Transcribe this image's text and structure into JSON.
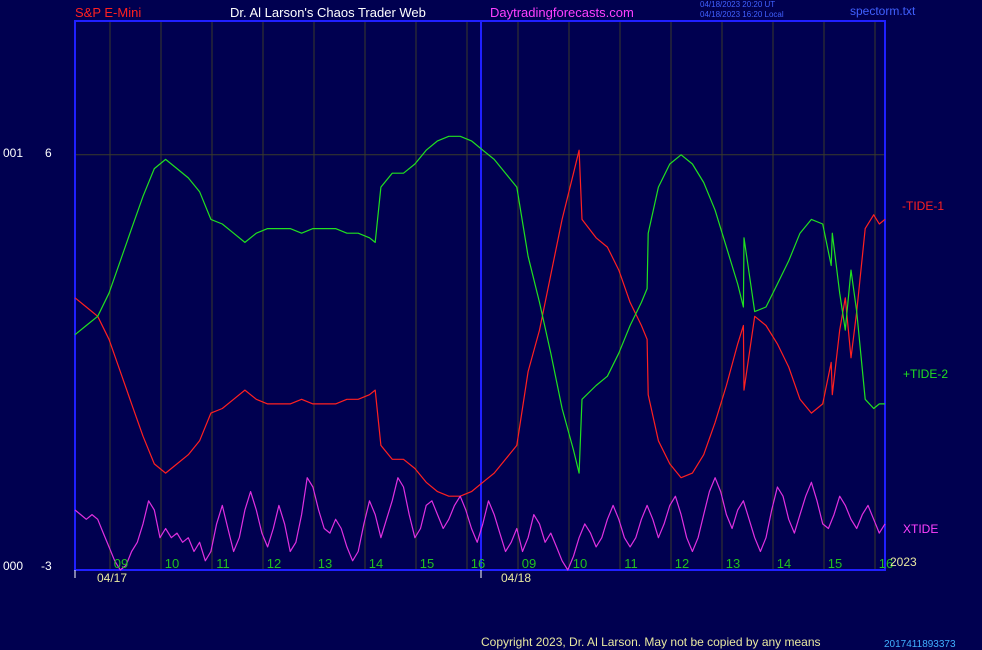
{
  "header": {
    "symbol": "S&P E-Mini",
    "author": "Dr. Al Larson's Chaos Trader Web",
    "site": "Daytradingforecasts.com",
    "stamp_line1": "04/18/2023 20:20 UT",
    "stamp_line2": "04/18/2023 16:20 Local",
    "file": "spectorm.txt"
  },
  "footer": {
    "copyright": "Copyright 2023, Dr. Al Larson. May not be copied by any means",
    "counter": "2017411893373"
  },
  "colors": {
    "background": "#000050",
    "frame": "#2020ff",
    "minus_tide": "#ff2020",
    "plus_tide": "#20e020",
    "xtide": "#e030e0",
    "grid": "#3a3a2a",
    "tick_label": "#20c020",
    "date_label": "#e8e8a0"
  },
  "chart_data": {
    "type": "line",
    "title": "",
    "y_axis": {
      "ticks": [
        6,
        -3
      ],
      "left_codes": [
        "001",
        "000"
      ],
      "ylim": [
        -3,
        8.9
      ]
    },
    "x_axis": {
      "hour_labels": [
        "09",
        "10",
        "11",
        "12",
        "13",
        "14",
        "15",
        "16",
        "09",
        "10",
        "11",
        "12",
        "13",
        "14",
        "15",
        "16"
      ],
      "date_labels": [
        "04/17",
        "04/18"
      ],
      "year_label": "2023"
    },
    "series": [
      {
        "name": "-TIDE-1",
        "color": "#ff2020",
        "points": [
          [
            0,
            2.9
          ],
          [
            2,
            2.7
          ],
          [
            4,
            2.5
          ],
          [
            6,
            2.0
          ],
          [
            8,
            1.3
          ],
          [
            10,
            0.6
          ],
          [
            12,
            -0.1
          ],
          [
            14,
            -0.7
          ],
          [
            16,
            -0.9
          ],
          [
            18,
            -0.7
          ],
          [
            20,
            -0.5
          ],
          [
            22,
            -0.2
          ],
          [
            24,
            0.4
          ],
          [
            26,
            0.5
          ],
          [
            28,
            0.7
          ],
          [
            30,
            0.9
          ],
          [
            32,
            0.7
          ],
          [
            34,
            0.6
          ],
          [
            36,
            0.6
          ],
          [
            38,
            0.6
          ],
          [
            40,
            0.7
          ],
          [
            42,
            0.6
          ],
          [
            44,
            0.6
          ],
          [
            46,
            0.6
          ],
          [
            48,
            0.7
          ],
          [
            50,
            0.7
          ],
          [
            52,
            0.8
          ],
          [
            53,
            0.9
          ],
          [
            54,
            -0.3
          ],
          [
            56,
            -0.6
          ],
          [
            58,
            -0.6
          ],
          [
            60,
            -0.8
          ],
          [
            62,
            -1.1
          ],
          [
            64,
            -1.3
          ],
          [
            66,
            -1.4
          ],
          [
            68,
            -1.4
          ],
          [
            70,
            -1.3
          ],
          [
            72,
            -1.1
          ],
          [
            74,
            -0.9
          ],
          [
            76,
            -0.6
          ],
          [
            78,
            -0.3
          ],
          [
            80,
            1.3
          ],
          [
            82,
            2.2
          ],
          [
            84,
            3.4
          ],
          [
            86,
            4.6
          ],
          [
            88,
            5.6
          ],
          [
            89,
            6.1
          ],
          [
            89.5,
            4.6
          ],
          [
            92,
            4.2
          ],
          [
            94,
            4.0
          ],
          [
            96,
            3.5
          ],
          [
            98,
            2.8
          ],
          [
            100,
            2.3
          ],
          [
            101,
            2.0
          ],
          [
            101.2,
            0.8
          ],
          [
            103,
            -0.2
          ],
          [
            105,
            -0.7
          ],
          [
            107,
            -1.0
          ],
          [
            109,
            -0.9
          ],
          [
            111,
            -0.5
          ],
          [
            113,
            0.2
          ],
          [
            115,
            1.0
          ],
          [
            117,
            1.9
          ],
          [
            118,
            2.3
          ],
          [
            118.1,
            0.9
          ],
          [
            120,
            2.5
          ],
          [
            122,
            2.3
          ],
          [
            124,
            1.9
          ],
          [
            126,
            1.4
          ],
          [
            128,
            0.7
          ],
          [
            130,
            0.4
          ],
          [
            132,
            0.6
          ],
          [
            133.5,
            1.5
          ],
          [
            133.7,
            0.8
          ],
          [
            135,
            2.2
          ],
          [
            136,
            2.9
          ],
          [
            137,
            1.6
          ],
          [
            138,
            2.6
          ],
          [
            139.5,
            4.4
          ],
          [
            141,
            4.7
          ],
          [
            142,
            4.5
          ],
          [
            143,
            4.6
          ]
        ]
      },
      {
        "name": "+TIDE-2",
        "color": "#20e020",
        "points": [
          [
            0,
            2.1
          ],
          [
            2,
            2.3
          ],
          [
            4,
            2.5
          ],
          [
            6,
            3.0
          ],
          [
            8,
            3.7
          ],
          [
            10,
            4.4
          ],
          [
            12,
            5.1
          ],
          [
            14,
            5.7
          ],
          [
            16,
            5.9
          ],
          [
            18,
            5.7
          ],
          [
            20,
            5.5
          ],
          [
            22,
            5.2
          ],
          [
            24,
            4.6
          ],
          [
            26,
            4.5
          ],
          [
            28,
            4.3
          ],
          [
            30,
            4.1
          ],
          [
            32,
            4.3
          ],
          [
            34,
            4.4
          ],
          [
            36,
            4.4
          ],
          [
            38,
            4.4
          ],
          [
            40,
            4.3
          ],
          [
            42,
            4.4
          ],
          [
            44,
            4.4
          ],
          [
            46,
            4.4
          ],
          [
            48,
            4.3
          ],
          [
            50,
            4.3
          ],
          [
            52,
            4.2
          ],
          [
            53,
            4.1
          ],
          [
            54,
            5.3
          ],
          [
            56,
            5.6
          ],
          [
            58,
            5.6
          ],
          [
            60,
            5.8
          ],
          [
            62,
            6.1
          ],
          [
            64,
            6.3
          ],
          [
            66,
            6.4
          ],
          [
            68,
            6.4
          ],
          [
            70,
            6.3
          ],
          [
            72,
            6.1
          ],
          [
            74,
            5.9
          ],
          [
            76,
            5.6
          ],
          [
            78,
            5.3
          ],
          [
            80,
            3.8
          ],
          [
            82,
            2.8
          ],
          [
            84,
            1.7
          ],
          [
            86,
            0.5
          ],
          [
            88,
            -0.4
          ],
          [
            89,
            -0.9
          ],
          [
            89.5,
            0.7
          ],
          [
            92,
            1.0
          ],
          [
            94,
            1.2
          ],
          [
            96,
            1.7
          ],
          [
            98,
            2.3
          ],
          [
            100,
            2.8
          ],
          [
            101,
            3.1
          ],
          [
            101.2,
            4.3
          ],
          [
            103,
            5.3
          ],
          [
            105,
            5.8
          ],
          [
            107,
            6.0
          ],
          [
            109,
            5.8
          ],
          [
            111,
            5.4
          ],
          [
            113,
            4.8
          ],
          [
            115,
            4.0
          ],
          [
            117,
            3.2
          ],
          [
            118,
            2.7
          ],
          [
            118.1,
            4.2
          ],
          [
            120,
            2.6
          ],
          [
            122,
            2.7
          ],
          [
            124,
            3.2
          ],
          [
            126,
            3.7
          ],
          [
            128,
            4.3
          ],
          [
            130,
            4.6
          ],
          [
            132,
            4.5
          ],
          [
            133.5,
            3.6
          ],
          [
            133.7,
            4.3
          ],
          [
            135,
            3.0
          ],
          [
            136,
            2.2
          ],
          [
            137,
            3.5
          ],
          [
            138,
            2.6
          ],
          [
            139.5,
            0.7
          ],
          [
            141,
            0.5
          ],
          [
            142,
            0.6
          ],
          [
            143,
            0.6
          ]
        ]
      },
      {
        "name": "XTIDE",
        "color": "#e030e0",
        "points": [
          [
            0,
            -1.7
          ],
          [
            1,
            -1.8
          ],
          [
            2,
            -1.9
          ],
          [
            3,
            -1.8
          ],
          [
            4,
            -1.9
          ],
          [
            5,
            -2.2
          ],
          [
            6,
            -2.5
          ],
          [
            7,
            -2.8
          ],
          [
            8,
            -3.0
          ],
          [
            9,
            -2.9
          ],
          [
            10,
            -2.6
          ],
          [
            11,
            -2.4
          ],
          [
            12,
            -2.0
          ],
          [
            13,
            -1.5
          ],
          [
            14,
            -1.7
          ],
          [
            15,
            -2.3
          ],
          [
            16,
            -2.1
          ],
          [
            17,
            -2.3
          ],
          [
            18,
            -2.2
          ],
          [
            19,
            -2.4
          ],
          [
            20,
            -2.3
          ],
          [
            21,
            -2.6
          ],
          [
            22,
            -2.4
          ],
          [
            23,
            -2.8
          ],
          [
            24,
            -2.6
          ],
          [
            25,
            -2.0
          ],
          [
            26,
            -1.6
          ],
          [
            27,
            -2.1
          ],
          [
            28,
            -2.6
          ],
          [
            29,
            -2.3
          ],
          [
            30,
            -1.7
          ],
          [
            31,
            -1.3
          ],
          [
            32,
            -1.7
          ],
          [
            33,
            -2.2
          ],
          [
            34,
            -2.5
          ],
          [
            35,
            -2.1
          ],
          [
            36,
            -1.6
          ],
          [
            37,
            -2.0
          ],
          [
            38,
            -2.6
          ],
          [
            39,
            -2.4
          ],
          [
            40,
            -1.8
          ],
          [
            41,
            -1.0
          ],
          [
            42,
            -1.2
          ],
          [
            43,
            -1.7
          ],
          [
            44,
            -2.1
          ],
          [
            45,
            -2.2
          ],
          [
            46,
            -1.9
          ],
          [
            47,
            -2.1
          ],
          [
            48,
            -2.5
          ],
          [
            49,
            -2.8
          ],
          [
            50,
            -2.6
          ],
          [
            51,
            -2.0
          ],
          [
            52,
            -1.5
          ],
          [
            53,
            -1.8
          ],
          [
            54,
            -2.3
          ],
          [
            55,
            -1.9
          ],
          [
            56,
            -1.5
          ],
          [
            57,
            -1.0
          ],
          [
            58,
            -1.2
          ],
          [
            59,
            -1.8
          ],
          [
            60,
            -2.3
          ],
          [
            61,
            -2.1
          ],
          [
            62,
            -1.6
          ],
          [
            63,
            -1.5
          ],
          [
            64,
            -1.8
          ],
          [
            65,
            -2.1
          ],
          [
            66,
            -1.9
          ],
          [
            67,
            -1.6
          ],
          [
            68,
            -1.4
          ],
          [
            69,
            -1.7
          ],
          [
            70,
            -2.1
          ],
          [
            71,
            -2.4
          ],
          [
            72,
            -2.0
          ],
          [
            73,
            -1.5
          ],
          [
            74,
            -1.8
          ],
          [
            75,
            -2.2
          ],
          [
            76,
            -2.6
          ],
          [
            77,
            -2.4
          ],
          [
            78,
            -2.1
          ],
          [
            79,
            -2.6
          ],
          [
            80,
            -2.3
          ],
          [
            81,
            -1.8
          ],
          [
            82,
            -2.0
          ],
          [
            83,
            -2.4
          ],
          [
            84,
            -2.2
          ],
          [
            85,
            -2.5
          ],
          [
            86,
            -2.8
          ],
          [
            87,
            -3.0
          ],
          [
            88,
            -2.7
          ],
          [
            89,
            -2.3
          ],
          [
            90,
            -2.0
          ],
          [
            91,
            -2.2
          ],
          [
            92,
            -2.5
          ],
          [
            93,
            -2.3
          ],
          [
            94,
            -1.9
          ],
          [
            95,
            -1.6
          ],
          [
            96,
            -1.9
          ],
          [
            97,
            -2.3
          ],
          [
            98,
            -2.5
          ],
          [
            99,
            -2.3
          ],
          [
            100,
            -1.9
          ],
          [
            101,
            -1.6
          ],
          [
            102,
            -1.9
          ],
          [
            103,
            -2.3
          ],
          [
            104,
            -2.0
          ],
          [
            105,
            -1.6
          ],
          [
            106,
            -1.4
          ],
          [
            107,
            -1.8
          ],
          [
            108,
            -2.3
          ],
          [
            109,
            -2.6
          ],
          [
            110,
            -2.3
          ],
          [
            111,
            -1.8
          ],
          [
            112,
            -1.3
          ],
          [
            113,
            -1.0
          ],
          [
            114,
            -1.3
          ],
          [
            115,
            -1.8
          ],
          [
            116,
            -2.1
          ],
          [
            117,
            -1.7
          ],
          [
            118,
            -1.5
          ],
          [
            119,
            -1.9
          ],
          [
            120,
            -2.3
          ],
          [
            121,
            -2.6
          ],
          [
            122,
            -2.3
          ],
          [
            123,
            -1.7
          ],
          [
            124,
            -1.2
          ],
          [
            125,
            -1.4
          ],
          [
            126,
            -1.9
          ],
          [
            127,
            -2.2
          ],
          [
            128,
            -1.8
          ],
          [
            129,
            -1.4
          ],
          [
            130,
            -1.1
          ],
          [
            131,
            -1.5
          ],
          [
            132,
            -2.0
          ],
          [
            133,
            -2.1
          ],
          [
            134,
            -1.8
          ],
          [
            135,
            -1.4
          ],
          [
            136,
            -1.6
          ],
          [
            137,
            -1.9
          ],
          [
            138,
            -2.1
          ],
          [
            139,
            -1.8
          ],
          [
            140,
            -1.6
          ],
          [
            141,
            -1.9
          ],
          [
            142,
            -2.2
          ],
          [
            143,
            -2.0
          ]
        ]
      }
    ],
    "x_range": [
      0,
      143
    ]
  }
}
